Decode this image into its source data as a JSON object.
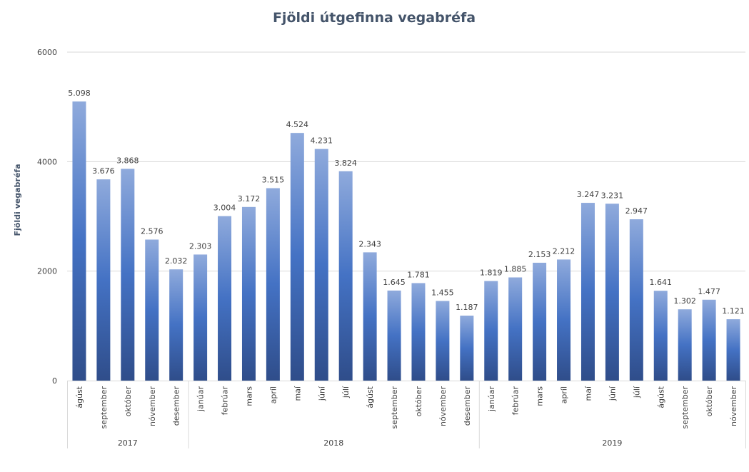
{
  "chart_data": {
    "type": "bar",
    "title": "Fjöldi útgefinna vegabréfa",
    "xlabel": "",
    "ylabel": "Fjöldi vegabréfa",
    "ylim": [
      0,
      6000
    ],
    "yticks": [
      0,
      2000,
      4000,
      6000
    ],
    "ytick_labels": [
      "0",
      "2000",
      "4000",
      "6000"
    ],
    "grid": true,
    "legend": "none",
    "bar_color_top": "#8faadc",
    "bar_color_mid": "#4472c4",
    "bar_color_bottom": "#2f4d8a",
    "groups": [
      {
        "label": "2017",
        "count": 5
      },
      {
        "label": "2018",
        "count": 12
      },
      {
        "label": "2019",
        "count": 11
      }
    ],
    "categories": [
      "ágúst",
      "september",
      "október",
      "nóvember",
      "desember",
      "janúar",
      "febrúar",
      "mars",
      "apríl",
      "maí",
      "júní",
      "júlí",
      "ágúst",
      "september",
      "október",
      "nóvember",
      "desember",
      "janúar",
      "febrúar",
      "mars",
      "apríl",
      "maí",
      "júní",
      "júlí",
      "ágúst",
      "september",
      "október",
      "nóvember"
    ],
    "values": [
      5098,
      3676,
      3868,
      2576,
      2032,
      2303,
      3004,
      3172,
      3515,
      4524,
      4231,
      3824,
      2343,
      1645,
      1781,
      1455,
      1187,
      1819,
      1885,
      2153,
      2212,
      3247,
      3231,
      2947,
      1641,
      1302,
      1477,
      1121
    ],
    "data_labels": [
      "5.098",
      "3.676",
      "3.868",
      "2.576",
      "2.032",
      "2.303",
      "3.004",
      "3.172",
      "3.515",
      "4.524",
      "4.231",
      "3.824",
      "2.343",
      "1.645",
      "1.781",
      "1.455",
      "1.187",
      "1.819",
      "1.885",
      "2.153",
      "2.212",
      "3.247",
      "3.231",
      "2.947",
      "1.641",
      "1.302",
      "1.477",
      "1.121"
    ]
  }
}
